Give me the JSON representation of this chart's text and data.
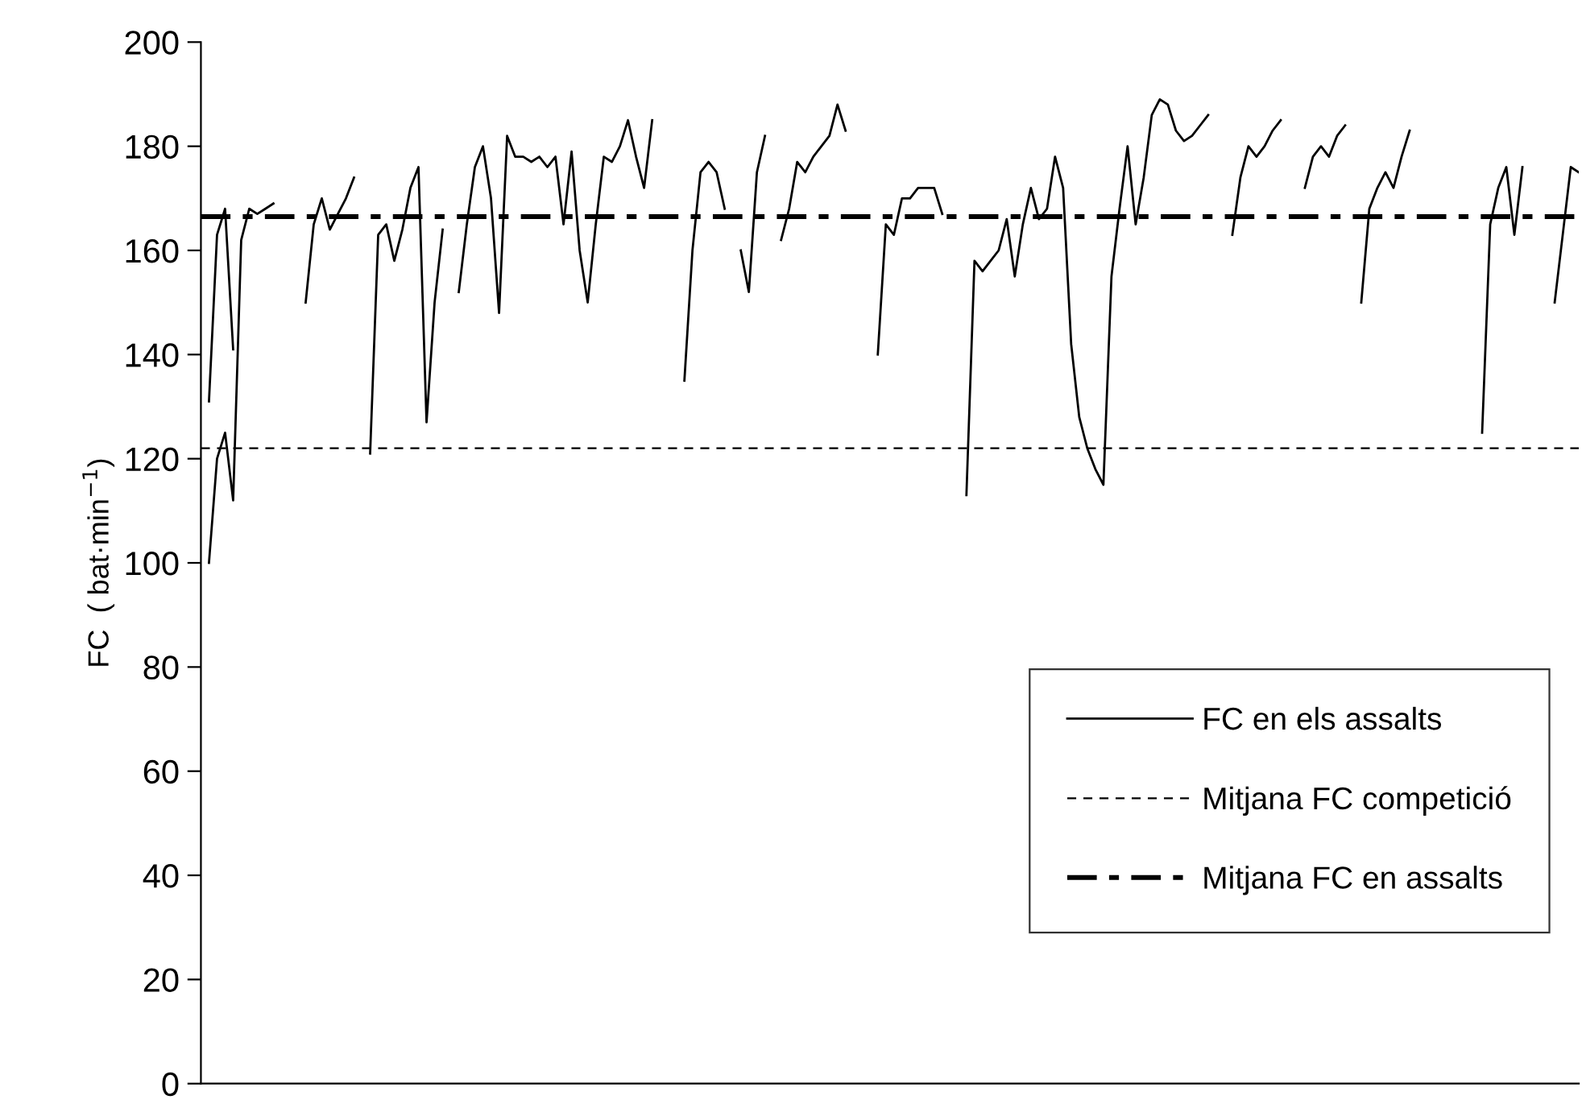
{
  "chart_data": {
    "type": "line",
    "ylabel": "FC  ( bat·min$^{−1}$)",
    "ylim": [
      0,
      200
    ],
    "yticks": [
      0,
      20,
      40,
      60,
      80,
      100,
      120,
      140,
      160,
      180,
      200
    ],
    "categories": [
      null,
      null,
      null,
      null,
      null,
      null,
      null,
      null,
      null,
      null,
      null,
      null,
      null,
      null,
      null,
      null,
      null,
      null,
      null,
      null,
      null,
      null,
      null,
      null,
      null,
      null,
      null,
      null,
      null,
      null,
      null,
      null,
      null,
      null,
      null,
      null,
      null,
      null,
      null,
      null,
      null,
      null,
      null,
      null,
      null,
      null,
      null,
      null,
      null,
      null,
      null,
      null,
      null,
      null,
      null,
      null,
      null,
      null,
      null,
      null,
      null,
      null,
      null,
      null,
      null,
      null,
      null,
      null,
      null,
      null,
      null,
      null,
      null,
      null,
      null,
      null,
      null,
      null,
      null,
      null,
      null,
      null,
      null,
      null,
      null,
      null,
      null,
      null,
      null,
      null,
      null,
      null,
      null,
      null,
      null,
      null,
      null,
      null,
      null,
      null,
      null,
      null,
      null,
      null,
      null,
      null,
      null,
      null,
      null,
      null,
      null,
      null,
      null,
      null,
      null,
      null,
      null,
      null,
      null,
      null,
      null,
      null,
      null,
      null,
      null,
      null,
      null,
      null,
      null,
      null,
      null,
      null,
      null,
      null,
      null,
      null,
      null,
      null,
      null,
      null,
      null,
      null,
      null,
      null,
      null,
      null,
      null,
      null,
      null,
      null,
      null,
      null,
      null,
      null,
      null,
      null,
      null,
      null,
      null,
      null,
      null,
      null,
      null,
      null,
      null,
      null,
      null,
      null,
      null,
      null,
      null
    ],
    "series": [
      {
        "name": "FC en els assalts",
        "color": "#000000",
        "line_style": "solid",
        "values": [
          100,
          120,
          125,
          112,
          162,
          168,
          167,
          168,
          169,
          null,
          null,
          null,
          150,
          165,
          170,
          164,
          167,
          170,
          174,
          null,
          121,
          163,
          165,
          158,
          164,
          172,
          176,
          127,
          150,
          164,
          null,
          152,
          165,
          176,
          180,
          170,
          148,
          182,
          178,
          178,
          177,
          178,
          176,
          178,
          165,
          179,
          160,
          150,
          165,
          178,
          177,
          180,
          185,
          178,
          172,
          185,
          null,
          null,
          null,
          135,
          160,
          175,
          177,
          175,
          168,
          null,
          160,
          152,
          175,
          182,
          null,
          162,
          168,
          177,
          175,
          178,
          180,
          182,
          188,
          183,
          null,
          null,
          null,
          140,
          165,
          163,
          170,
          170,
          172,
          172,
          172,
          167,
          null,
          null,
          113,
          158,
          156,
          158,
          160,
          166,
          155,
          165,
          172,
          166,
          168,
          178,
          172,
          142,
          128,
          122,
          118,
          115,
          155,
          168,
          180,
          165,
          174,
          186,
          189,
          188,
          183,
          181,
          182,
          184,
          186,
          null,
          null,
          163,
          174,
          180,
          178,
          180,
          183,
          185,
          null,
          null,
          172,
          178,
          180,
          178,
          182,
          184,
          null,
          150,
          168,
          172,
          175,
          172,
          178,
          183,
          null,
          null,
          null,
          null,
          null,
          null,
          null,
          null,
          125,
          165,
          172,
          176,
          163,
          176,
          null,
          null,
          null,
          150,
          163,
          176,
          175
        ]
      },
      {
        "color": "#000000",
        "line_style": "solid",
        "values": [
          131,
          163,
          168,
          141,
          null,
          null,
          null,
          null,
          null,
          null,
          null,
          null,
          null,
          null,
          null,
          null,
          null,
          null,
          null,
          null,
          null,
          null,
          null,
          null,
          null,
          null,
          null,
          null,
          null,
          null,
          null,
          null,
          null,
          null,
          null,
          null,
          null,
          null,
          null,
          null,
          null,
          null,
          null,
          null,
          null,
          null,
          null,
          null,
          null,
          null,
          null,
          null,
          null,
          null,
          null,
          null,
          null,
          null,
          null,
          null,
          null,
          null,
          null,
          null,
          null,
          null,
          null,
          null,
          null,
          null,
          null,
          null,
          null,
          null,
          null,
          null,
          null,
          null,
          null,
          null,
          null,
          null,
          null,
          null,
          null,
          null,
          null,
          null,
          null,
          null,
          null,
          null,
          null,
          null,
          null,
          null,
          null,
          null,
          null,
          null,
          null,
          null,
          null,
          null,
          null,
          null,
          null,
          null,
          null,
          null,
          null,
          null,
          null,
          null,
          null,
          null,
          null,
          null,
          null,
          null,
          null,
          null,
          null,
          null,
          null,
          null,
          null,
          null,
          null,
          null,
          null,
          null,
          null,
          null,
          null,
          null,
          null,
          null,
          null,
          null,
          null,
          null,
          null,
          null,
          null,
          null,
          null,
          null,
          null,
          null,
          null,
          null,
          null,
          null,
          null,
          null,
          null,
          null,
          null,
          null,
          null,
          null,
          null,
          null,
          null,
          null,
          null,
          null,
          null,
          null,
          null
        ]
      }
    ],
    "ref_lines": [
      {
        "axis": "y",
        "value": 122,
        "label": "Mitjana FC competició",
        "color": "#000000",
        "line_style": "dashed"
      },
      {
        "axis": "y",
        "value": 166.5,
        "label": "Mitjana FC en assalts",
        "color": "#000000",
        "line_style": "dashdot"
      }
    ],
    "legend": "bottom right",
    "grid": false,
    "tick_labels": "y"
  }
}
